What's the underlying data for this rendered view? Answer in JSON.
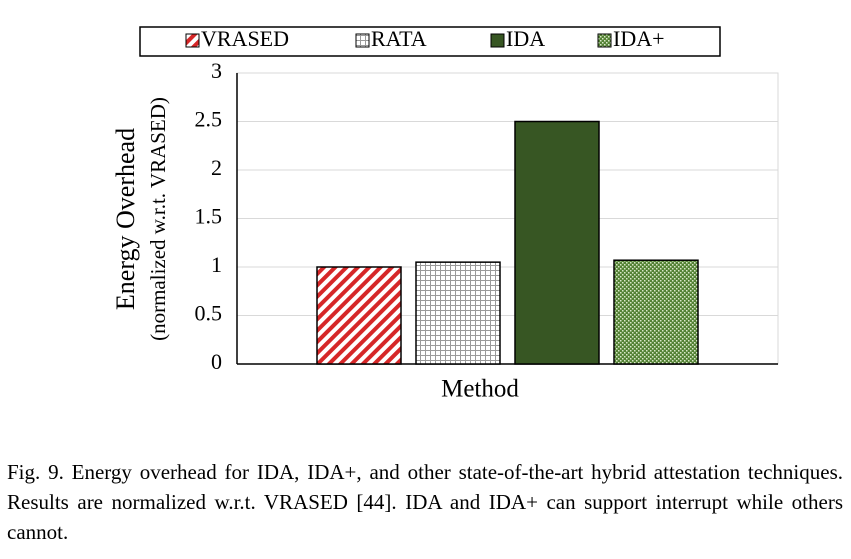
{
  "chart_data": {
    "type": "bar",
    "x_label": "Method",
    "y_label": "Energy Overhead",
    "y_sublabel": "(normalized w.r.t. VRASED)",
    "categories": [
      null
    ],
    "series": [
      {
        "name": "VRASED",
        "color": "#d62728",
        "pattern": "diagonal",
        "values": [
          1.0
        ]
      },
      {
        "name": "RATA",
        "color": "#9a9a9a",
        "pattern": "grid",
        "values": [
          1.05
        ]
      },
      {
        "name": "IDA",
        "color": "#375623",
        "pattern": "solid",
        "values": [
          2.5
        ]
      },
      {
        "name": "IDA+",
        "color": "#548235",
        "pattern": "dots",
        "values": [
          1.07
        ]
      }
    ],
    "ylim": [
      0,
      3
    ],
    "yticks": [
      0,
      0.5,
      1,
      1.5,
      2,
      2.5,
      3
    ],
    "grid": true,
    "legend": "top"
  },
  "caption": "Fig. 9.  Energy overhead for IDA, IDA+, and other state-of-the-art hybrid attestation techniques. Results are normalized w.r.t. VRASED [44]. IDA and IDA+ can support interrupt while others cannot."
}
